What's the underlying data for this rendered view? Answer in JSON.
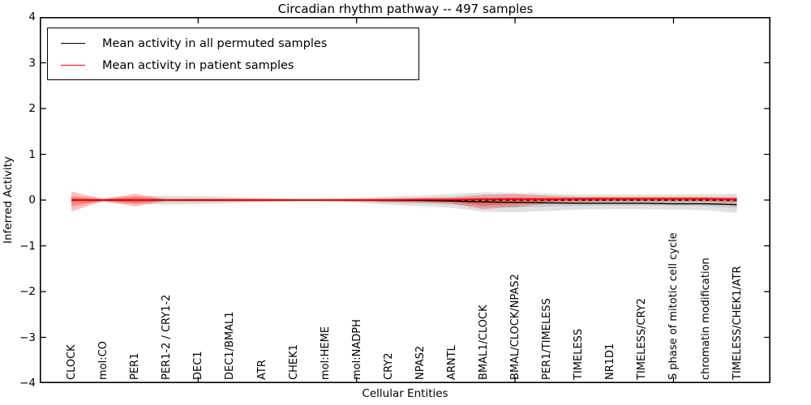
{
  "chart": {
    "title": "Circadian rhythm pathway -- 497 samples",
    "xlabel": "Cellular Entities",
    "ylabel": "Inferred Activity",
    "legend": [
      {
        "label": "Mean activity in all permuted samples",
        "color": "#000000"
      },
      {
        "label": "Mean activity in patient samples",
        "color": "#ff0000"
      }
    ]
  },
  "chart_data": {
    "type": "line",
    "title": "Circadian rhythm pathway -- 497 samples",
    "xlabel": "Cellular Entities",
    "ylabel": "Inferred Activity",
    "ylim": [
      -4,
      4
    ],
    "yticks": {
      "values": [
        4,
        3,
        2,
        1,
        0,
        -1,
        -2,
        -3,
        -4
      ],
      "labels": [
        "4",
        "3",
        "2",
        "1",
        "0",
        "−1",
        "−2",
        "−3",
        "−4"
      ]
    },
    "xticks_minor_positions": [
      5,
      10,
      15,
      20
    ],
    "grid": false,
    "legend_position": "upper left",
    "categories": [
      "CLOCK",
      "mol:CO",
      "PER1",
      "PER1-2 / CRY1-2",
      "DEC1",
      "DEC1/BMAL1",
      "ATR",
      "CHEK1",
      "mol:HEME",
      "mol:NADPH",
      "CRY2",
      "NPAS2",
      "ARNTL",
      "BMAL1/CLOCK",
      "BMAL/CLOCK/NPAS2",
      "PER1/TIMELESS",
      "TIMELESS",
      "NR1D1",
      "TIMELESS/CRY2",
      "S phase of mitotic cell cycle",
      "chromatin modification",
      "TIMELESS/CHEK1/ATR"
    ],
    "series": [
      {
        "name": "Mean activity in all permuted samples",
        "color": "#000000",
        "style": "solid",
        "width": 1.4,
        "values": [
          0,
          0,
          0,
          0,
          0,
          0,
          0,
          0,
          0,
          0,
          -0.01,
          -0.01,
          -0.02,
          -0.04,
          -0.05,
          -0.06,
          -0.07,
          -0.07,
          -0.07,
          -0.08,
          -0.08,
          -0.1
        ]
      },
      {
        "name": "Mean activity in patient samples",
        "color": "#ff0000",
        "style": "solid",
        "width": 1.8,
        "values": [
          0,
          0,
          0,
          0,
          0,
          0,
          0,
          0,
          0,
          0,
          0,
          0.01,
          0.01,
          0.02,
          0.02,
          0.02,
          0.03,
          0.03,
          0.03,
          0.03,
          0.03,
          0.02
        ]
      },
      {
        "name": "zero reference",
        "color": "#000000",
        "style": "dashed",
        "width": 1.4,
        "values": [
          0,
          0,
          0,
          0,
          0,
          0,
          0,
          0,
          0,
          0,
          0,
          0,
          0,
          0,
          0,
          0,
          0,
          0,
          0,
          0,
          0,
          0
        ]
      }
    ],
    "bands": [
      {
        "name": "permuted samples range",
        "color": "#8c8c8c",
        "opacity": 0.26,
        "upper": [
          0.06,
          0.06,
          0.08,
          0.1,
          0.09,
          0.07,
          0.05,
          0.04,
          0.04,
          0.05,
          0.08,
          0.1,
          0.13,
          0.17,
          0.16,
          0.14,
          0.12,
          0.12,
          0.12,
          0.12,
          0.13,
          0.14
        ],
        "lower": [
          -0.06,
          -0.06,
          -0.08,
          -0.1,
          -0.09,
          -0.07,
          -0.05,
          -0.04,
          -0.04,
          -0.06,
          -0.1,
          -0.13,
          -0.17,
          -0.25,
          -0.27,
          -0.24,
          -0.21,
          -0.2,
          -0.2,
          -0.21,
          -0.22,
          -0.28
        ]
      },
      {
        "name": "patient samples range",
        "color": "#ff0000",
        "opacity": 0.26,
        "upper": [
          0.19,
          0.02,
          0.14,
          0.02,
          0.03,
          0.03,
          0.03,
          0.02,
          0.02,
          0.03,
          0.04,
          0.05,
          0.06,
          0.12,
          0.13,
          0.1,
          0.07,
          0.07,
          0.07,
          0.07,
          0.07,
          0.07
        ],
        "lower": [
          -0.25,
          -0.02,
          -0.14,
          -0.02,
          -0.03,
          -0.03,
          -0.03,
          -0.02,
          -0.02,
          -0.03,
          -0.04,
          -0.05,
          -0.08,
          -0.2,
          -0.15,
          -0.08,
          -0.05,
          -0.04,
          -0.04,
          -0.04,
          -0.04,
          -0.07
        ]
      }
    ]
  }
}
